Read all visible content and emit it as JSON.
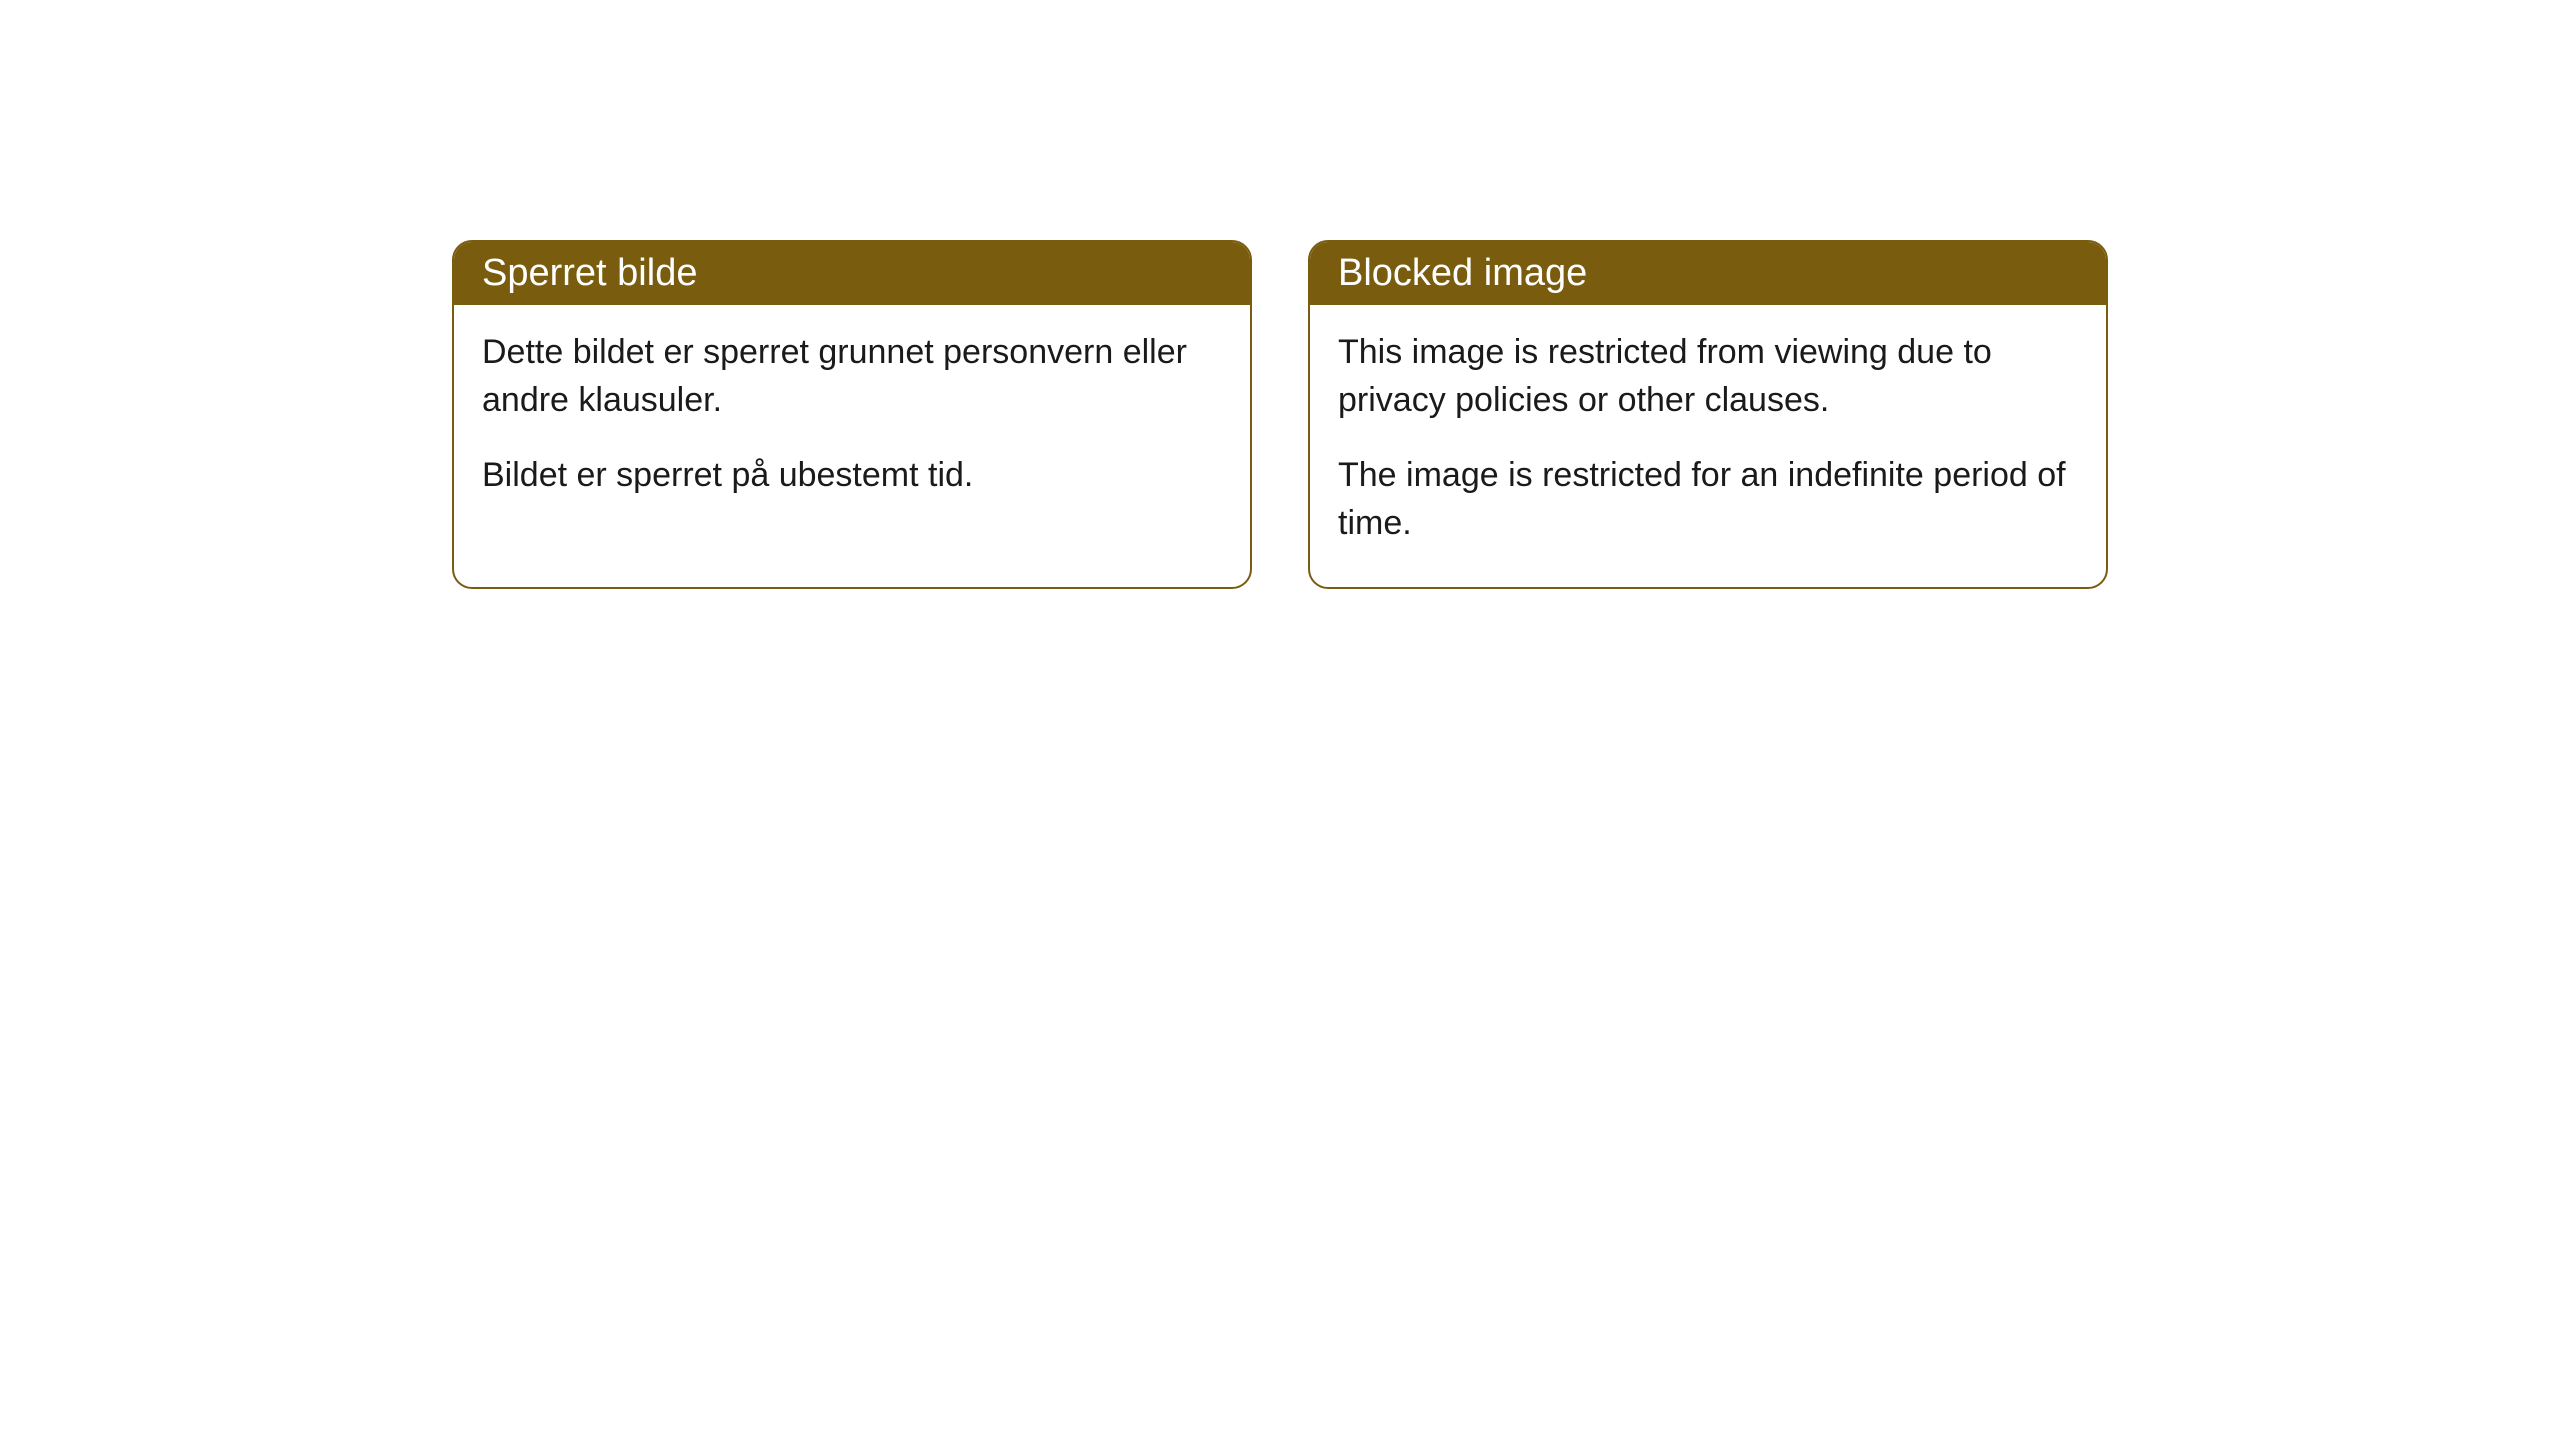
{
  "cards": [
    {
      "title": "Sperret bilde",
      "paragraph1": "Dette bildet er sperret grunnet personvern eller andre klausuler.",
      "paragraph2": "Bildet er sperret på ubestemt tid."
    },
    {
      "title": "Blocked image",
      "paragraph1": "This image is restricted from viewing due to privacy policies or other clauses.",
      "paragraph2": "The image is restricted for an indefinite period of time."
    }
  ],
  "style": {
    "header_bg_color": "#7a5c0f",
    "header_text_color": "#ffffff",
    "border_color": "#7a5c0f",
    "body_bg_color": "#ffffff",
    "body_text_color": "#1a1a1a",
    "border_radius": 20,
    "header_fontsize": 38,
    "body_fontsize": 34
  }
}
